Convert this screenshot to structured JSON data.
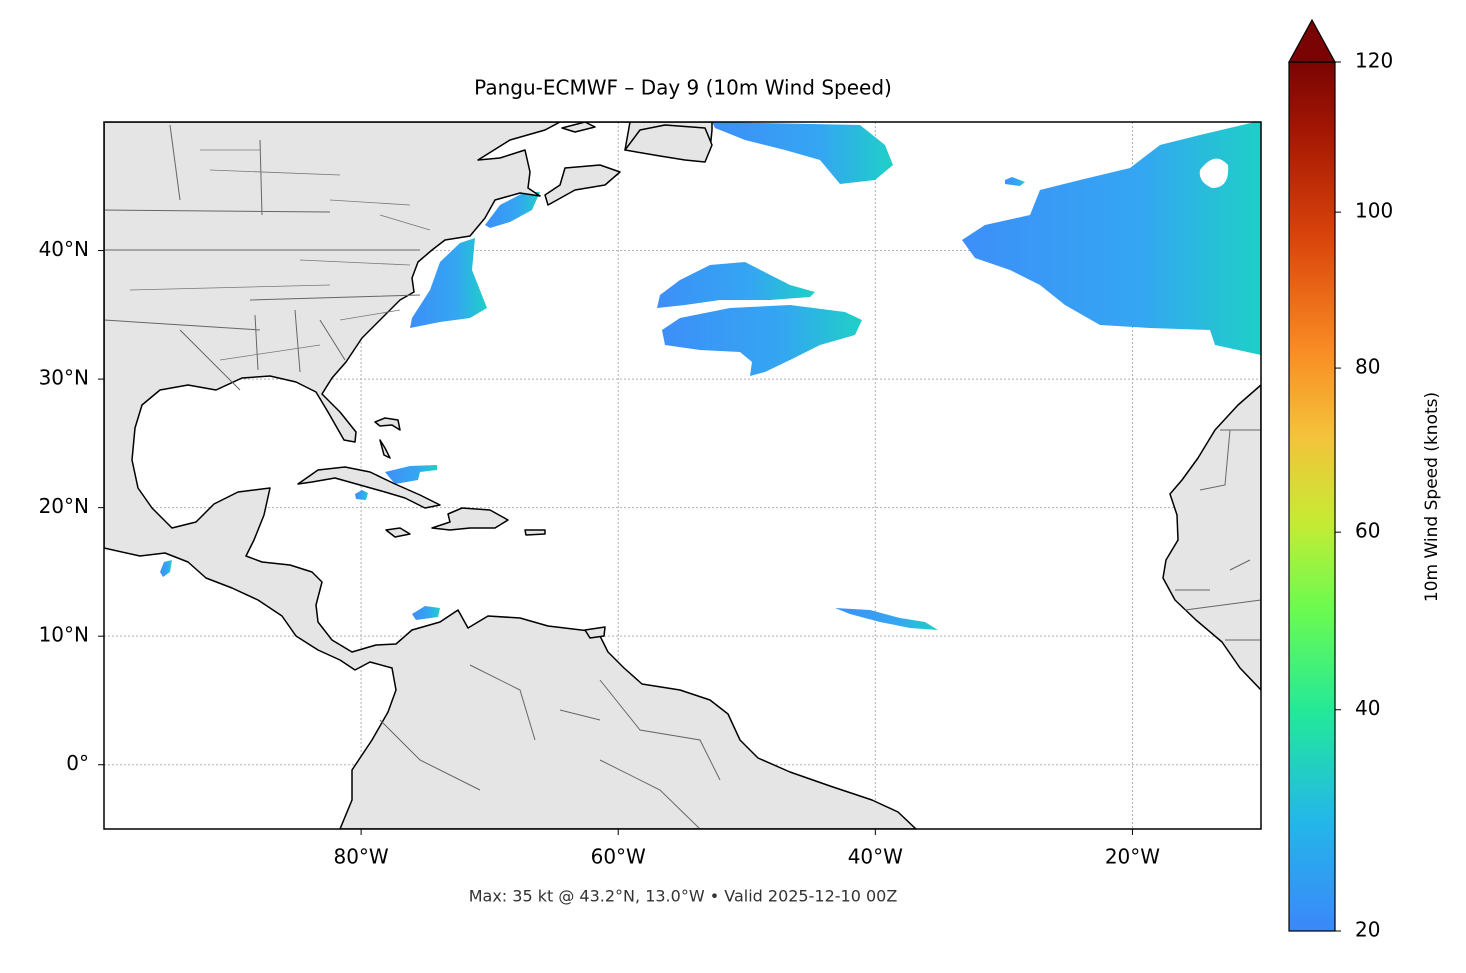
{
  "chart_data": {
    "type": "map",
    "title": "Pangu-ECMWF – Day 9 (10m Wind Speed)",
    "footer": "Max: 35 kt @ 43.2°N, 13.0°W • Valid 2025-12-10 00Z",
    "xlim": [
      -100,
      -10
    ],
    "ylim": [
      -5,
      50
    ],
    "xticks": [
      {
        "value": -80,
        "label": "80°W"
      },
      {
        "value": -60,
        "label": "60°W"
      },
      {
        "value": -40,
        "label": "40°W"
      },
      {
        "value": -20,
        "label": "20°W"
      }
    ],
    "yticks": [
      {
        "value": 0,
        "label": "0°"
      },
      {
        "value": 10,
        "label": "10°N"
      },
      {
        "value": 20,
        "label": "20°N"
      },
      {
        "value": 30,
        "label": "30°N"
      },
      {
        "value": 40,
        "label": "40°N"
      }
    ],
    "grid": true,
    "colorbar": {
      "label": "10m Wind Speed (knots)",
      "lim": [
        20,
        120
      ],
      "ticks": [
        20,
        40,
        60,
        80,
        100,
        120
      ],
      "scale": "power",
      "gamma": 0.85,
      "extend": "max"
    }
  }
}
